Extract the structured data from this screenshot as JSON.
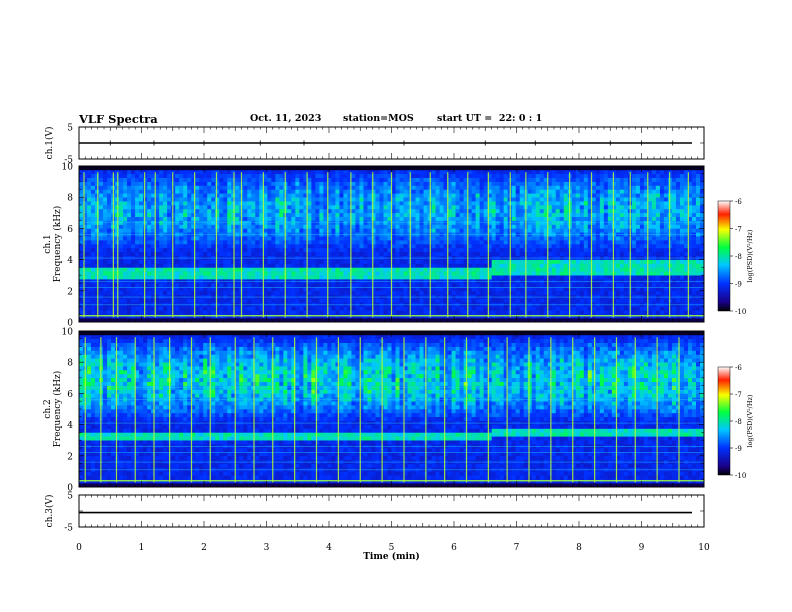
{
  "header": {
    "title": "VLF Spectra",
    "date": "Oct. 11, 2023",
    "station": "station=MOS",
    "start": "start UT =  22: 0 : 1"
  },
  "chart_data": [
    {
      "type": "line",
      "panel": "ch1-waveform",
      "ylabel": "ch.1(V)",
      "ylim": [
        -5,
        5
      ],
      "yticks": [
        "5",
        "-5"
      ],
      "xlim": [
        0,
        10
      ],
      "series_level": 0,
      "spike_times": [
        0.5,
        1.2,
        2.0,
        2.9,
        3.6,
        4.7,
        5.2,
        6.5,
        7.3,
        7.9,
        8.5,
        9.0,
        9.5
      ]
    },
    {
      "type": "heatmap",
      "panel": "ch1-spectrogram",
      "ylabel_line1": "ch.1",
      "ylabel_line2": "Frequency (kHz)",
      "ylim": [
        0,
        10
      ],
      "yticks": [
        "0",
        "2",
        "4",
        "6",
        "8",
        "10"
      ],
      "xlim": [
        0,
        10
      ],
      "colorbar": {
        "label": "log(PSD)(V²/Hz)",
        "ticks": [
          "-6",
          "-7",
          "-8",
          "-9",
          "-10"
        ],
        "range": [
          -10,
          -6
        ]
      },
      "base_band_khz": [
        4.5,
        9.8
      ],
      "hum_band_khz": [
        2.8,
        3.6
      ],
      "hum_shift_min": 6.6,
      "sferic_times": [
        0.08,
        0.3,
        0.55,
        0.62,
        1.05,
        1.22,
        1.5,
        1.85,
        2.2,
        2.48,
        2.6,
        2.95,
        3.3,
        3.65,
        3.98,
        4.35,
        4.7,
        5.0,
        5.3,
        5.62,
        5.9,
        6.22,
        6.55,
        6.9,
        7.15,
        7.5,
        7.85,
        8.2,
        8.55,
        8.82,
        9.1,
        9.45,
        9.75
      ]
    },
    {
      "type": "heatmap",
      "panel": "ch2-spectrogram",
      "ylabel_line1": "ch.2",
      "ylabel_line2": "Frequency (kHz)",
      "ylim": [
        0,
        10
      ],
      "yticks": [
        "0",
        "2",
        "4",
        "6",
        "8",
        "10"
      ],
      "xlim": [
        0,
        10
      ],
      "colorbar": {
        "label": "log(PSD)(V²/Hz)",
        "ticks": [
          "-6",
          "-7",
          "-8",
          "-9",
          "-10"
        ],
        "range": [
          -10,
          -6
        ]
      },
      "base_band_khz": [
        4.2,
        9.6
      ],
      "hum_band_khz": [
        2.9,
        3.5
      ],
      "hum_shift_min": 6.6,
      "sferic_times": [
        0.1,
        0.35,
        0.6,
        0.9,
        1.2,
        1.45,
        1.8,
        2.1,
        2.5,
        2.8,
        3.1,
        3.45,
        3.8,
        4.15,
        4.5,
        4.85,
        5.2,
        5.55,
        5.85,
        6.2,
        6.55,
        6.85,
        7.2,
        7.55,
        7.9,
        8.25,
        8.6,
        8.9,
        9.25,
        9.6
      ]
    },
    {
      "type": "line",
      "panel": "ch3-waveform",
      "ylabel": "ch.3(V)",
      "ylim": [
        -5,
        5
      ],
      "yticks": [
        "5",
        "-5"
      ],
      "xlim": [
        0,
        10
      ],
      "series_level": -0.5,
      "spike_times": []
    }
  ],
  "xaxis": {
    "label": "Time (min)",
    "ticks": [
      "0",
      "1",
      "2",
      "3",
      "4",
      "5",
      "6",
      "7",
      "8",
      "9",
      "10"
    ]
  }
}
